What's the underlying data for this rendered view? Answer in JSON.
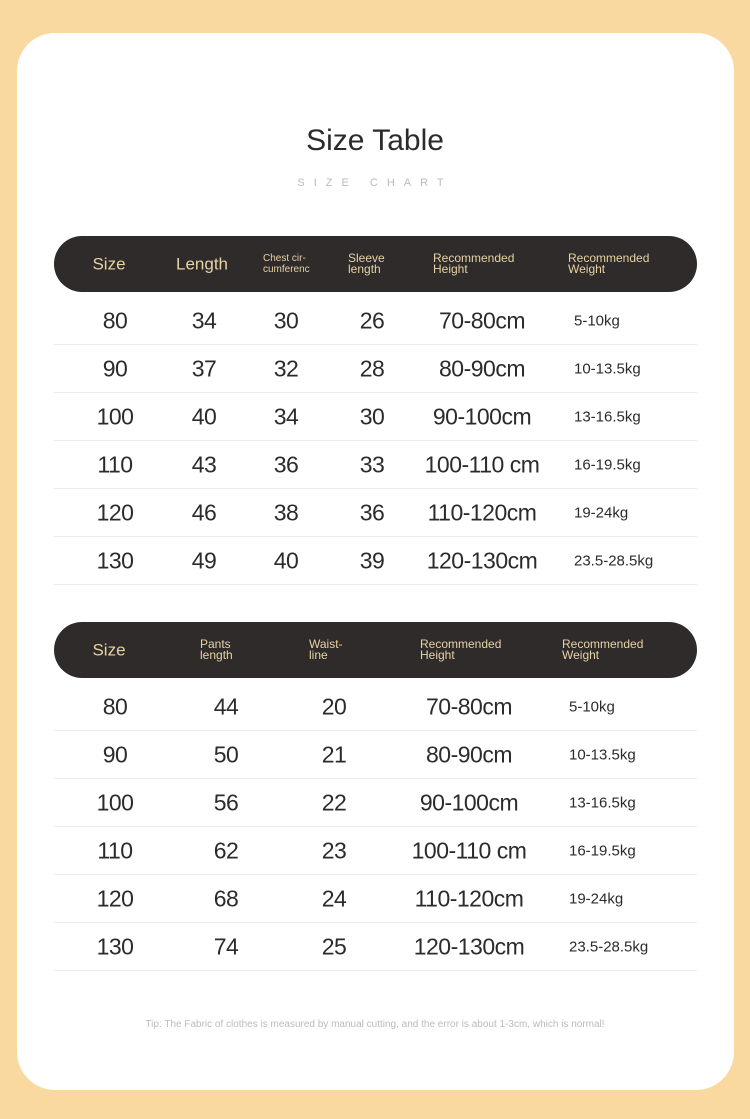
{
  "title": "Size Table",
  "subtitle": "SIZE CHART",
  "top_table": {
    "headers": [
      "Size",
      "Length",
      "Chest cir-\ncumferenc",
      "Sleeve\nlength",
      "Recommended\nHeight",
      "Recommended\nWeight"
    ],
    "rows": [
      [
        "80",
        "34",
        "30",
        "26",
        "70-80cm",
        "5-10kg"
      ],
      [
        "90",
        "37",
        "32",
        "28",
        "80-90cm",
        "10-13.5kg"
      ],
      [
        "100",
        "40",
        "34",
        "30",
        "90-100cm",
        "13-16.5kg"
      ],
      [
        "110",
        "43",
        "36",
        "33",
        "100-110 cm",
        "16-19.5kg"
      ],
      [
        "120",
        "46",
        "38",
        "36",
        "110-120cm",
        "19-24kg"
      ],
      [
        "130",
        "49",
        "40",
        "39",
        "120-130cm",
        "23.5-28.5kg"
      ]
    ]
  },
  "bottom_table": {
    "headers": [
      "Size",
      "Pants\nlength",
      "Waist-\nline",
      "Recommended\nHeight",
      "Recommended\nWeight"
    ],
    "rows": [
      [
        "80",
        "44",
        "20",
        "70-80cm",
        "5-10kg"
      ],
      [
        "90",
        "50",
        "21",
        "80-90cm",
        "10-13.5kg"
      ],
      [
        "100",
        "56",
        "22",
        "90-100cm",
        "13-16.5kg"
      ],
      [
        "110",
        "62",
        "23",
        "100-110 cm",
        "16-19.5kg"
      ],
      [
        "120",
        "68",
        "24",
        "110-120cm",
        "19-24kg"
      ],
      [
        "130",
        "74",
        "25",
        "120-130cm",
        "23.5-28.5kg"
      ]
    ]
  },
  "tip": "Tip: The Fabric of clothes is measured by manual cutting, and the error is about 1-3cm, which is normal!",
  "colors": {
    "background": "#f9d9a0",
    "header": "#2e2b2a",
    "header_text": "#e6d2a4"
  }
}
